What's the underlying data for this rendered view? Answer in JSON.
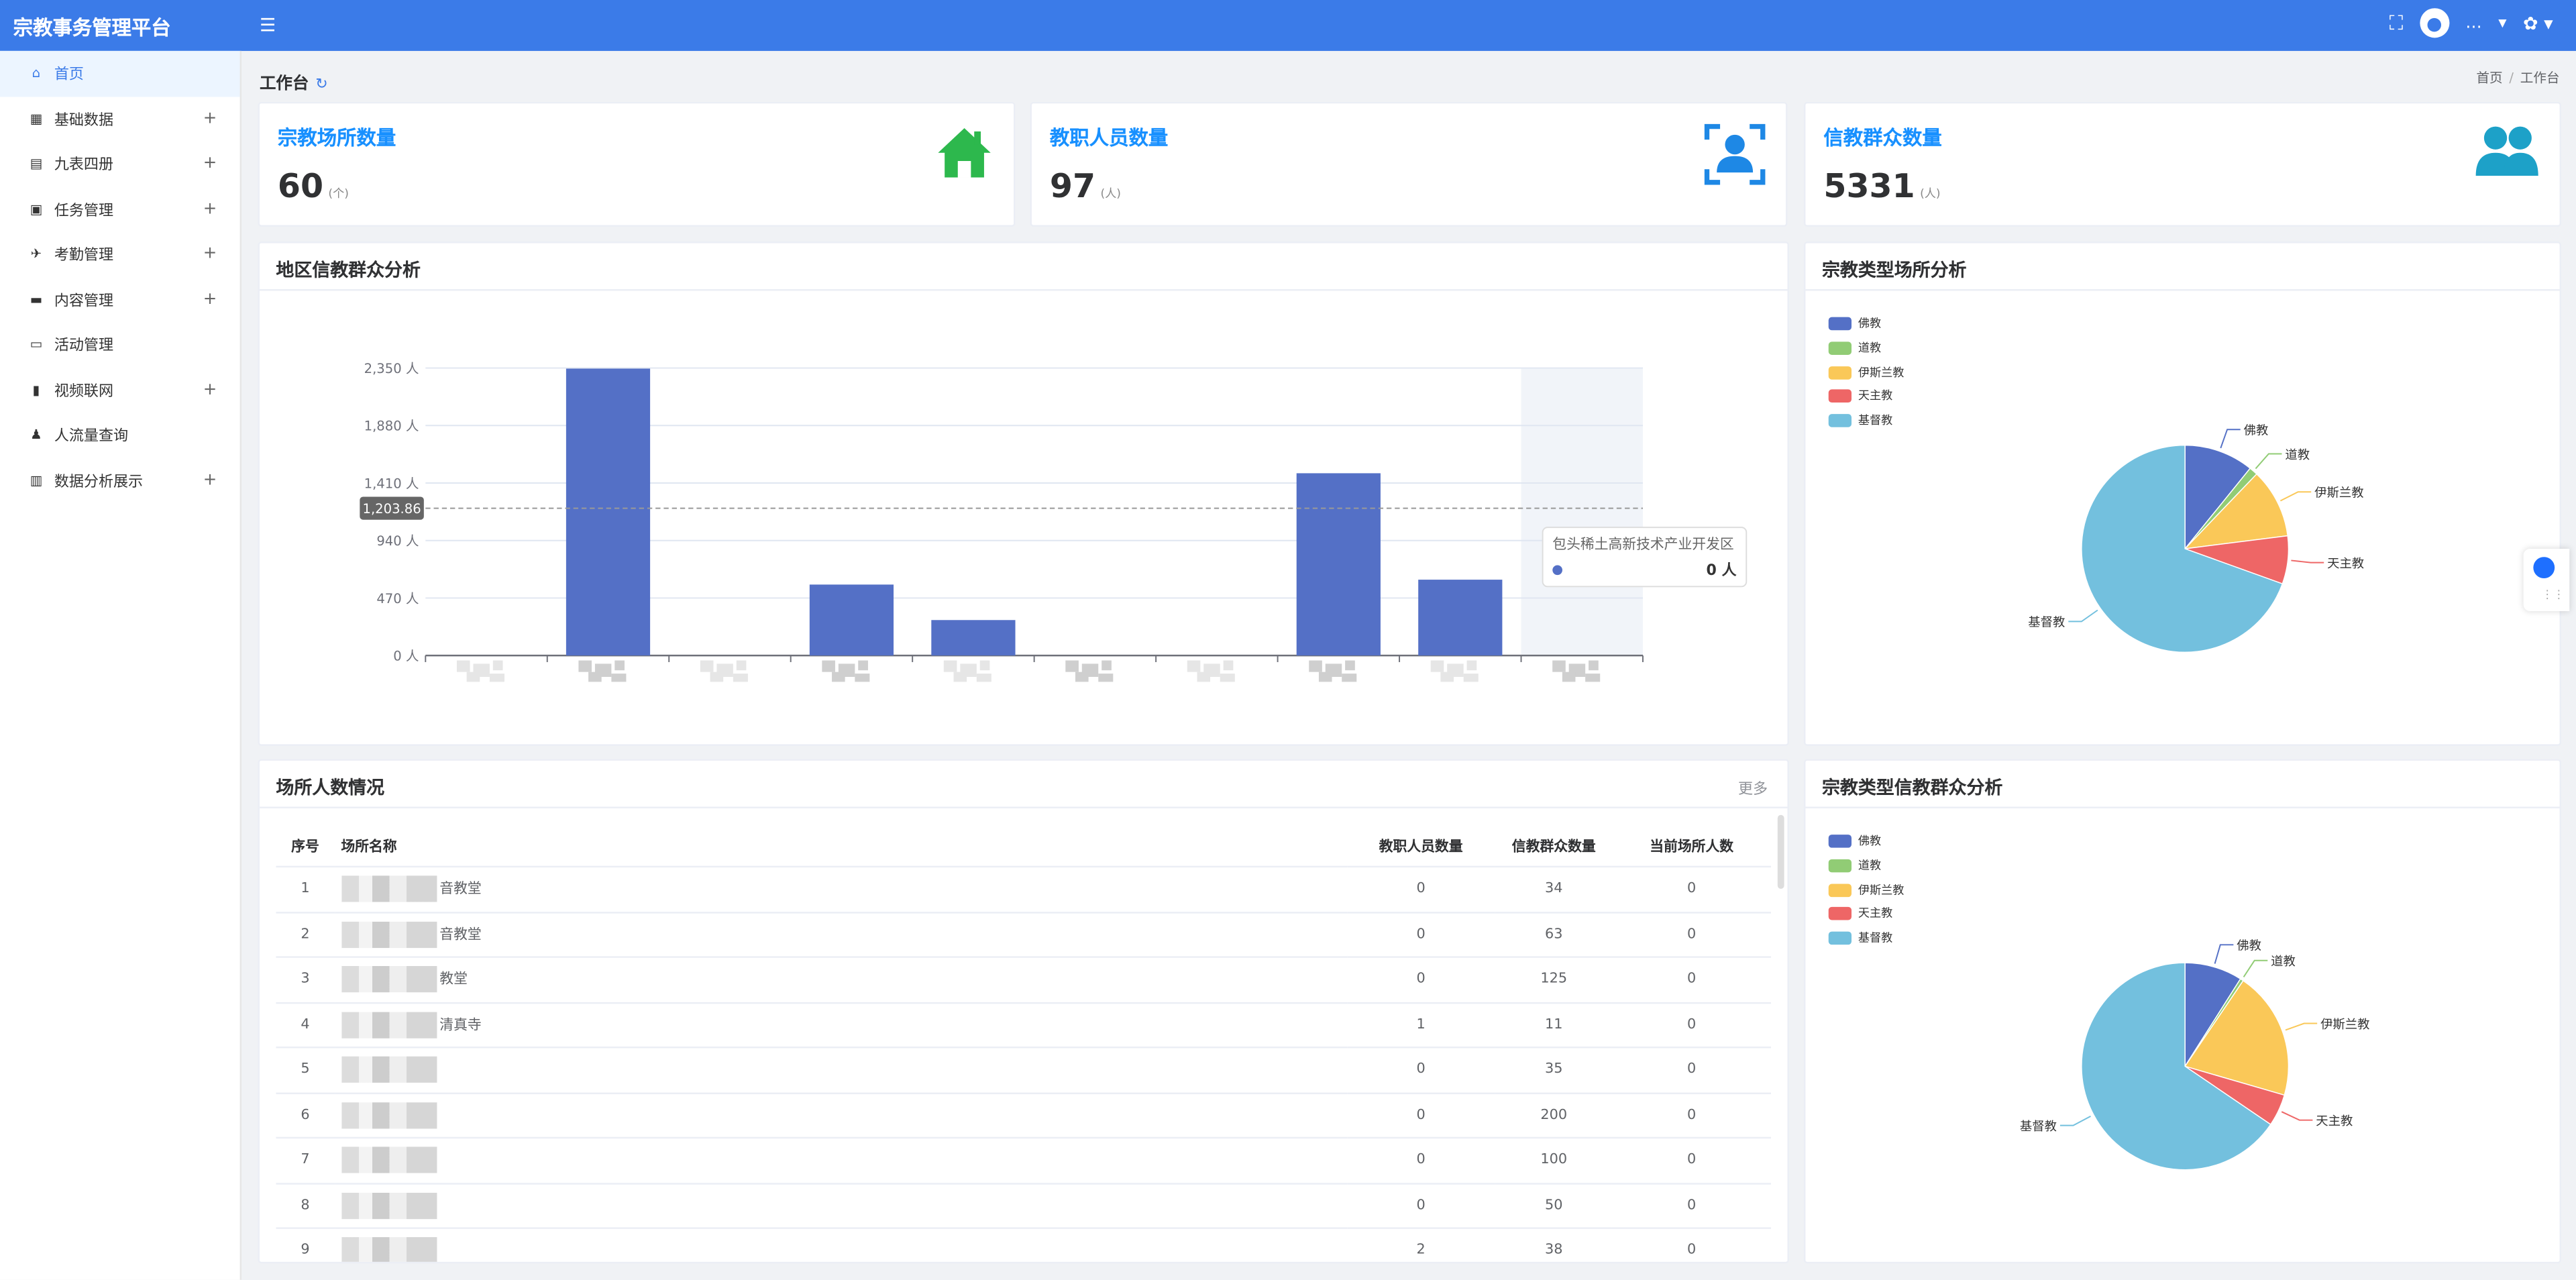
{
  "app": {
    "title": "宗教事务管理平台",
    "user_name": "…"
  },
  "sidebar": {
    "items": [
      {
        "label": "首页",
        "active": true,
        "expandable": false
      },
      {
        "label": "基础数据",
        "active": false,
        "expandable": true
      },
      {
        "label": "九表四册",
        "active": false,
        "expandable": true
      },
      {
        "label": "任务管理",
        "active": false,
        "expandable": true
      },
      {
        "label": "考勤管理",
        "active": false,
        "expandable": true
      },
      {
        "label": "内容管理",
        "active": false,
        "expandable": true
      },
      {
        "label": "活动管理",
        "active": false,
        "expandable": false
      },
      {
        "label": "视频联网",
        "active": false,
        "expandable": true
      },
      {
        "label": "人流量查询",
        "active": false,
        "expandable": false
      },
      {
        "label": "数据分析展示",
        "active": false,
        "expandable": true
      }
    ]
  },
  "page": {
    "title": "工作台",
    "breadcrumb": [
      "首页",
      "工作台"
    ]
  },
  "stats": [
    {
      "label": "宗教场所数量",
      "value": "60",
      "unit": "(个)",
      "icon": "house-icon"
    },
    {
      "label": "教职人员数量",
      "value": "97",
      "unit": "(人)",
      "icon": "person-scan-icon"
    },
    {
      "label": "信教群众数量",
      "value": "5331",
      "unit": "(人)",
      "icon": "users-icon"
    }
  ],
  "panels": {
    "region_title": "地区信教群众分析",
    "site_type_title": "宗教类型场所分析",
    "table_title": "场所人数情况",
    "table_more": "更多",
    "believer_type_title": "宗教类型信教群众分析"
  },
  "colors": {
    "topbar": "#3b7be8",
    "accent": "#1890ff",
    "bar": "#5470c6"
  },
  "chart_data": [
    {
      "type": "bar",
      "title": "地区信教群众分析",
      "categories": [
        "",
        "",
        "",
        "",
        "",
        "",
        "",
        "",
        "",
        "包头稀土高新技术产业开发区"
      ],
      "values": [
        0,
        2345,
        0,
        580,
        290,
        0,
        0,
        1490,
        620,
        0
      ],
      "yticks": [
        "0 人",
        "470 人",
        "940 人",
        "1,410 人",
        "1,880 人",
        "2,350 人"
      ],
      "ylim": [
        0,
        2350
      ],
      "grid": true,
      "reference_line": {
        "label": "1,203.86",
        "value": 1203.86
      },
      "tooltip": {
        "category": "包头稀土高新技术产业开发区",
        "value_text": "0 人"
      }
    },
    {
      "type": "pie",
      "title": "宗教类型场所分析",
      "legend": [
        "佛教",
        "道教",
        "伊斯兰教",
        "天主教",
        "基督教"
      ],
      "legend_position": "top-left",
      "values": [
        6.5,
        0.8,
        6.5,
        4.5,
        41.7
      ],
      "colors": [
        "#5470c6",
        "#91cc75",
        "#fac858",
        "#ee6666",
        "#73c0de"
      ]
    },
    {
      "type": "pie",
      "title": "宗教类型信教群众分析",
      "legend": [
        "佛教",
        "道教",
        "伊斯兰教",
        "天主教",
        "基督教"
      ],
      "legend_position": "top-left",
      "values": [
        9,
        0.5,
        20,
        5,
        65.5
      ],
      "colors": [
        "#5470c6",
        "#91cc75",
        "#fac858",
        "#ee6666",
        "#73c0de"
      ]
    }
  ],
  "table": {
    "columns": [
      "序号",
      "场所名称",
      "教职人员数量",
      "信教群众数量",
      "当前场所人数"
    ],
    "rows": [
      [
        "1",
        "音教堂",
        "0",
        "34",
        "0"
      ],
      [
        "2",
        "音教堂",
        "0",
        "63",
        "0"
      ],
      [
        "3",
        "教堂",
        "0",
        "125",
        "0"
      ],
      [
        "4",
        "清真寺",
        "1",
        "11",
        "0"
      ],
      [
        "5",
        "",
        "0",
        "35",
        "0"
      ],
      [
        "6",
        "",
        "0",
        "200",
        "0"
      ],
      [
        "7",
        "",
        "0",
        "100",
        "0"
      ],
      [
        "8",
        "",
        "0",
        "50",
        "0"
      ],
      [
        "9",
        "",
        "2",
        "38",
        "0"
      ]
    ]
  }
}
